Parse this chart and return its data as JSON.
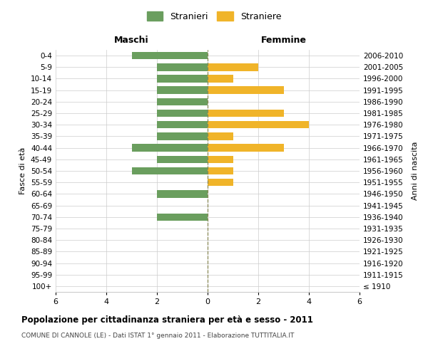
{
  "age_groups": [
    "100+",
    "95-99",
    "90-94",
    "85-89",
    "80-84",
    "75-79",
    "70-74",
    "65-69",
    "60-64",
    "55-59",
    "50-54",
    "45-49",
    "40-44",
    "35-39",
    "30-34",
    "25-29",
    "20-24",
    "15-19",
    "10-14",
    "5-9",
    "0-4"
  ],
  "birth_years": [
    "≤ 1910",
    "1911-1915",
    "1916-1920",
    "1921-1925",
    "1926-1930",
    "1931-1935",
    "1936-1940",
    "1941-1945",
    "1946-1950",
    "1951-1955",
    "1956-1960",
    "1961-1965",
    "1966-1970",
    "1971-1975",
    "1976-1980",
    "1981-1985",
    "1986-1990",
    "1991-1995",
    "1996-2000",
    "2001-2005",
    "2006-2010"
  ],
  "males": [
    0,
    0,
    0,
    0,
    0,
    0,
    2,
    0,
    2,
    0,
    3,
    2,
    3,
    2,
    2,
    2,
    2,
    2,
    2,
    2,
    3
  ],
  "females": [
    0,
    0,
    0,
    0,
    0,
    0,
    0,
    0,
    0,
    1,
    1,
    1,
    3,
    1,
    4,
    3,
    0,
    3,
    1,
    2,
    0
  ],
  "male_color": "#6a9e5e",
  "female_color": "#f0b429",
  "title_main": "Popolazione per cittadinanza straniera per età e sesso - 2011",
  "title_sub": "COMUNE DI CANNOLE (LE) - Dati ISTAT 1° gennaio 2011 - Elaborazione TUTTITALIA.IT",
  "ylabel_left": "Fasce di età",
  "ylabel_right": "Anni di nascita",
  "xlabel_left": "Maschi",
  "xlabel_right": "Femmine",
  "legend_male": "Stranieri",
  "legend_female": "Straniere",
  "xlim": 6,
  "bg_color": "#ffffff",
  "grid_color": "#cccccc",
  "center_line_color": "#888855"
}
